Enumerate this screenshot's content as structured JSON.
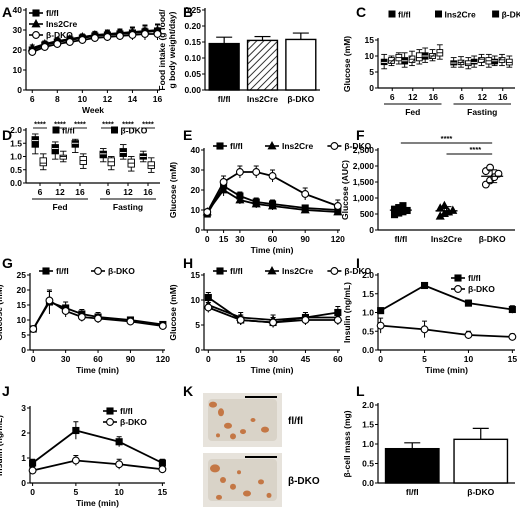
{
  "panels": [
    {
      "letter": "A",
      "type": "line",
      "xlabel": "Week",
      "ylabel": "Weight (g)",
      "ylim": [
        0,
        40
      ],
      "yticks": [
        0,
        10,
        20,
        30,
        40
      ],
      "xlim": [
        5.5,
        16.2
      ],
      "xticks": [
        6,
        8,
        10,
        12,
        14,
        16
      ],
      "legend": [
        "fl/fl",
        "Ins2Cre",
        "β-DKO"
      ],
      "series": [
        {
          "name": "fl/fl",
          "marker": "square",
          "x": [
            6,
            7,
            8,
            9,
            10,
            11,
            12,
            13,
            14,
            15,
            16
          ],
          "y": [
            20,
            22.5,
            24,
            25,
            26,
            27,
            27.5,
            28,
            28.5,
            29,
            29.5
          ],
          "err": [
            1.5,
            1.5,
            1.5,
            1.5,
            1.5,
            1.8,
            2,
            2,
            2.5,
            3,
            3
          ]
        },
        {
          "name": "Ins2Cre",
          "marker": "triangle",
          "x": [
            6,
            7,
            8,
            9,
            10,
            11,
            12,
            13,
            14,
            15,
            16
          ],
          "y": [
            21,
            23,
            24.5,
            25.5,
            26.5,
            27.5,
            28,
            28.5,
            29,
            29.5,
            30
          ],
          "err": [
            1.5,
            1.5,
            1.5,
            1.5,
            1.5,
            1.8,
            2,
            2,
            2.5,
            3,
            3
          ]
        },
        {
          "name": "β-DKO",
          "marker": "circle",
          "x": [
            6,
            7,
            8,
            9,
            10,
            11,
            12,
            13,
            14,
            15,
            16
          ],
          "y": [
            19,
            21.5,
            23,
            24,
            25,
            26,
            26.5,
            27,
            27.5,
            28,
            28
          ],
          "err": [
            1.5,
            1.5,
            1.5,
            1.5,
            1.5,
            1.8,
            2,
            2,
            2.5,
            3,
            3
          ]
        }
      ]
    },
    {
      "letter": "B",
      "type": "bar",
      "ylabel": "Food intake (g food/ g body weight/day)",
      "ylim": [
        0,
        0.25
      ],
      "yticks": [
        "0.00",
        "0.05",
        "0.10",
        "0.15",
        "0.20",
        "0.25"
      ],
      "categories": [
        "fl/fl",
        "Ins2Cre",
        "β-DKO"
      ],
      "values": [
        0.145,
        0.155,
        0.158
      ],
      "err": [
        0.02,
        0.012,
        0.02
      ],
      "fills": [
        "black",
        "hatch",
        "white"
      ]
    },
    {
      "letter": "C",
      "type": "box",
      "ylabel": "Glucose (mM)",
      "ylim": [
        0,
        15
      ],
      "yticks": [
        0,
        5,
        10,
        15
      ],
      "legend": [
        "fl/fl",
        "Ins2Cre",
        "β-DKO"
      ],
      "ticklabels": [
        "6",
        "12",
        "16",
        "6",
        "12",
        "16"
      ],
      "groups": [
        "Fed",
        "Fasting"
      ],
      "boxes": [
        [
          6,
          7.3,
          8,
          9,
          10.5
        ],
        [
          7,
          7.7,
          8.5,
          9.5,
          10
        ],
        [
          7.5,
          8.5,
          9.5,
          10.5,
          11
        ],
        [
          6.5,
          7.5,
          8.5,
          9.5,
          11
        ],
        [
          7,
          8,
          9,
          10,
          11.5
        ],
        [
          7.5,
          8.5,
          9.5,
          11,
          12
        ],
        [
          8,
          9,
          10,
          11,
          12.5
        ],
        [
          8.5,
          9.2,
          10,
          10.8,
          12
        ],
        [
          9,
          10,
          11,
          12,
          13.5
        ],
        [
          6.5,
          7.2,
          7.8,
          8.5,
          9.5
        ],
        [
          6.5,
          7.3,
          8,
          8.7,
          9.8
        ],
        [
          6,
          7,
          7.5,
          8.5,
          9.5
        ],
        [
          6.5,
          7.5,
          8,
          9,
          10
        ],
        [
          7,
          8,
          9,
          9.5,
          10.5
        ],
        [
          6.5,
          7.5,
          8.5,
          9.5,
          10.5
        ],
        [
          7,
          7.5,
          8.5,
          9,
          10
        ],
        [
          7,
          8,
          8.8,
          9.5,
          10.5
        ],
        [
          6.5,
          7.2,
          8,
          9,
          10
        ]
      ]
    },
    {
      "letter": "D",
      "type": "box",
      "ylabel": "Insulin (ng/mL)",
      "ylim": [
        0,
        2.0
      ],
      "yticks": [
        "0.0",
        "0.5",
        "1.0",
        "1.5",
        "2.0"
      ],
      "legend": [
        "fl/fl",
        "β-DKO"
      ],
      "ticklabels": [
        "6",
        "12",
        "16",
        "6",
        "12",
        "16"
      ],
      "groups": [
        "Fed",
        "Fasting"
      ],
      "significance": [
        "****",
        "****",
        "****",
        "****",
        "****",
        "****"
      ],
      "boxes": [
        [
          1.1,
          1.35,
          1.6,
          1.75,
          1.85
        ],
        [
          0.5,
          0.65,
          0.75,
          0.95,
          1.1
        ],
        [
          0.9,
          1.1,
          1.3,
          1.45,
          1.55
        ],
        [
          0.8,
          0.9,
          1.0,
          1.05,
          1.2
        ],
        [
          1.15,
          1.35,
          1.5,
          1.6,
          1.65
        ],
        [
          0.55,
          0.7,
          0.85,
          1.0,
          1.1
        ],
        [
          0.8,
          0.95,
          1.1,
          1.2,
          1.3
        ],
        [
          0.5,
          0.65,
          0.8,
          0.95,
          1.0
        ],
        [
          0.9,
          1.0,
          1.15,
          1.3,
          1.45
        ],
        [
          0.45,
          0.6,
          0.75,
          0.9,
          1.0
        ],
        [
          0.8,
          0.9,
          1.0,
          1.1,
          1.2
        ],
        [
          0.4,
          0.55,
          0.65,
          0.8,
          0.95
        ]
      ]
    },
    {
      "letter": "E",
      "type": "line",
      "xlabel": "Time (min)",
      "ylabel": "Glucose (mM)",
      "ylim": [
        0,
        40
      ],
      "yticks": [
        0,
        10,
        20,
        30,
        40
      ],
      "xlim": [
        -3,
        122
      ],
      "xticks": [
        0,
        15,
        30,
        60,
        90,
        120
      ],
      "legend": [
        "fl/fl",
        "Ins2Cre",
        "β-DKO"
      ],
      "series": [
        {
          "name": "fl/fl",
          "marker": "square",
          "x": [
            0,
            15,
            30,
            45,
            60,
            90,
            120
          ],
          "y": [
            8,
            22,
            17,
            14,
            13,
            11,
            10
          ],
          "err": [
            1,
            3,
            2,
            2,
            2,
            1.5,
            1.5
          ]
        },
        {
          "name": "Ins2Cre",
          "marker": "triangle",
          "x": [
            0,
            15,
            30,
            45,
            60,
            90,
            120
          ],
          "y": [
            9,
            20,
            15,
            13,
            12,
            10,
            9
          ],
          "err": [
            1,
            3,
            2,
            2,
            2,
            1.5,
            1.5
          ]
        },
        {
          "name": "β-DKO",
          "marker": "circle",
          "x": [
            0,
            15,
            30,
            45,
            60,
            90,
            120
          ],
          "y": [
            9,
            24,
            29,
            29,
            27,
            18,
            12
          ],
          "err": [
            1,
            3,
            3,
            3,
            3,
            3,
            3
          ]
        }
      ]
    },
    {
      "letter": "F",
      "type": "scatter",
      "ylabel": "Glucose (AUC)",
      "ylim": [
        0,
        2500
      ],
      "yticks": [
        "0",
        "500",
        "1,000",
        "1,500",
        "2,000",
        "2,500"
      ],
      "categories": [
        "fl/fl",
        "Ins2Cre",
        "β-DKO"
      ],
      "points": [
        [
          480,
          530,
          570,
          610,
          650,
          700,
          760
        ],
        [
          430,
          510,
          560,
          610,
          680,
          760
        ],
        [
          1420,
          1550,
          1650,
          1760,
          1840,
          1950
        ]
      ],
      "means": [
        620,
        600,
        1680
      ],
      "sd": [
        110,
        130,
        200
      ],
      "significance": [
        {
          "from": 0,
          "to": 2,
          "label": "****"
        },
        {
          "from": 1,
          "to": 2,
          "label": "****"
        }
      ]
    },
    {
      "letter": "G",
      "type": "line",
      "xlabel": "Time (min)",
      "ylabel": "Glucose (mM)",
      "ylim": [
        0,
        25
      ],
      "yticks": [
        0,
        5,
        10,
        15,
        20,
        25
      ],
      "xlim": [
        -3,
        122
      ],
      "xticks": [
        0,
        30,
        60,
        90,
        120
      ],
      "legend": [
        "fl/fl",
        "β-DKO"
      ],
      "series": [
        {
          "name": "fl/fl",
          "marker": "square",
          "x": [
            0,
            15,
            30,
            45,
            60,
            90,
            120
          ],
          "y": [
            7,
            16,
            14,
            12,
            11,
            10,
            8.5
          ],
          "err": [
            1,
            4,
            2,
            1.5,
            1.5,
            1,
            1
          ]
        },
        {
          "name": "β-DKO",
          "marker": "circle",
          "x": [
            0,
            15,
            30,
            45,
            60,
            90,
            120
          ],
          "y": [
            7,
            16.5,
            13,
            11,
            10.5,
            9.5,
            8
          ],
          "err": [
            1,
            3,
            2,
            1.5,
            1.5,
            1,
            1
          ]
        }
      ]
    },
    {
      "letter": "H",
      "type": "line",
      "xlabel": "Time (min)",
      "ylabel": "Glucose (mM)",
      "ylim": [
        0,
        15
      ],
      "yticks": [
        0,
        5,
        10,
        15
      ],
      "xlim": [
        -2,
        61
      ],
      "xticks": [
        0,
        15,
        30,
        45,
        60
      ],
      "legend": [
        "fl/fl",
        "Ins2Cre",
        "β-DKO"
      ],
      "series": [
        {
          "name": "fl/fl",
          "marker": "square",
          "x": [
            0,
            15,
            30,
            45,
            60
          ],
          "y": [
            10.5,
            6,
            5.5,
            6.5,
            7.5
          ],
          "err": [
            1,
            1,
            1,
            1,
            1.2
          ]
        },
        {
          "name": "Ins2Cre",
          "marker": "triangle",
          "x": [
            0,
            15,
            30,
            45,
            60
          ],
          "y": [
            9,
            6.5,
            6,
            6.5,
            6.5
          ],
          "err": [
            1,
            1,
            1,
            1,
            1
          ]
        },
        {
          "name": "β-DKO",
          "marker": "circle",
          "x": [
            0,
            15,
            30,
            45,
            60
          ],
          "y": [
            8.5,
            6,
            5.5,
            6,
            6
          ],
          "err": [
            1,
            1,
            1,
            1,
            1
          ]
        }
      ]
    },
    {
      "letter": "I",
      "type": "line",
      "xlabel": "Time (min)",
      "ylabel": "Insulin (ng/mL)",
      "ylim": [
        0,
        2.0
      ],
      "yticks": [
        "0.0",
        "0.5",
        "1.0",
        "1.5",
        "2.0"
      ],
      "xlim": [
        -0.3,
        15.3
      ],
      "xticks": [
        0,
        5,
        10,
        15
      ],
      "legend": [
        "fl/fl",
        "β-DKO"
      ],
      "series": [
        {
          "name": "fl/fl",
          "marker": "square",
          "x": [
            0,
            5,
            10,
            15
          ],
          "y": [
            1.05,
            1.72,
            1.25,
            1.08
          ],
          "err": [
            0.06,
            0.05,
            0.08,
            0.1
          ]
        },
        {
          "name": "β-DKO",
          "marker": "circle",
          "x": [
            0,
            5,
            10,
            15
          ],
          "y": [
            0.65,
            0.55,
            0.4,
            0.35
          ],
          "err": [
            0.2,
            0.22,
            0.1,
            0.08
          ]
        }
      ]
    },
    {
      "letter": "J",
      "type": "line",
      "xlabel": "Time (min)",
      "ylabel": "Insulin (ng/mL)",
      "ylim": [
        0,
        3
      ],
      "yticks": [
        0,
        1,
        2,
        3
      ],
      "xlim": [
        -0.3,
        15.3
      ],
      "xticks": [
        0,
        5,
        10,
        15
      ],
      "legend": [
        "fl/fl",
        "β-DKO"
      ],
      "series": [
        {
          "name": "fl/fl",
          "marker": "square",
          "x": [
            0,
            5,
            10,
            15
          ],
          "y": [
            0.8,
            2.1,
            1.65,
            0.8
          ],
          "err": [
            0.15,
            0.35,
            0.2,
            0.15
          ]
        },
        {
          "name": "β-DKO",
          "marker": "circle",
          "x": [
            0,
            5,
            10,
            15
          ],
          "y": [
            0.5,
            0.9,
            0.75,
            0.55
          ],
          "err": [
            0.15,
            0.2,
            0.2,
            0.15
          ]
        }
      ]
    },
    {
      "letter": "K",
      "type": "image",
      "labels": [
        "fl/fl",
        "β-DKO"
      ]
    },
    {
      "letter": "L",
      "type": "bar",
      "ylabel": "β-cell mass (mg)",
      "ylim": [
        0,
        2.0
      ],
      "yticks": [
        "0.0",
        "0.5",
        "1.0",
        "1.5",
        "2.0"
      ],
      "categories": [
        "fl/fl",
        "β-DKO"
      ],
      "values": [
        0.88,
        1.12
      ],
      "err": [
        0.15,
        0.28
      ],
      "fills": [
        "black",
        "white"
      ]
    }
  ]
}
